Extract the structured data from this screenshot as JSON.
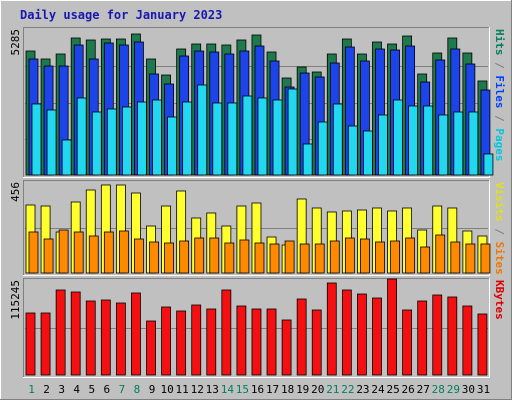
{
  "chart_data": {
    "type": "bar",
    "title": "Daily usage for January 2023",
    "x_tick_labels": [
      "1",
      "2",
      "3",
      "4",
      "5",
      "6",
      "7",
      "8",
      "9",
      "10",
      "11",
      "12",
      "13",
      "14",
      "15",
      "16",
      "17",
      "18",
      "19",
      "20",
      "21",
      "22",
      "23",
      "24",
      "25",
      "26",
      "27",
      "28",
      "29",
      "30",
      "31"
    ],
    "weekend_days": [
      1,
      7,
      8,
      14,
      15,
      21,
      22,
      28,
      29
    ],
    "panels": [
      {
        "id": "hits_files_pages",
        "ymax_label": "5285",
        "ymax": 5285,
        "side_label_parts": [
          {
            "text": "Pages",
            "color": "#00c8e0"
          },
          {
            "text": " / ",
            "color": "#808080"
          },
          {
            "text": "Files",
            "color": "#0040ff"
          },
          {
            "text": " / ",
            "color": "#808080"
          },
          {
            "text": "Hits",
            "color": "#00805c"
          }
        ],
        "series": [
          {
            "name": "Hits",
            "color": "#1e7a4c",
            "values": [
              4510,
              4240,
              4420,
              5000,
              4930,
              4950,
              4970,
              5130,
              4210,
              3660,
              4590,
              4780,
              4780,
              4750,
              4910,
              5100,
              4480,
              3540,
              3930,
              3760,
              4410,
              4970,
              4410,
              4850,
              4780,
              5050,
              3680,
              4430,
              5000,
              4440,
              3430
            ]
          },
          {
            "name": "Files",
            "color": "#1c44e8",
            "values": [
              4220,
              3960,
              3980,
              4750,
              4230,
              4800,
              4750,
              4860,
              3680,
              3330,
              4320,
              4530,
              4480,
              4400,
              4530,
              4700,
              4150,
              3210,
              3720,
              3570,
              4080,
              4660,
              4150,
              4610,
              4550,
              4720,
              3380,
              4180,
              4600,
              4060,
              3080
            ]
          },
          {
            "name": "Pages",
            "color": "#22d8f0",
            "values": [
              2590,
              2370,
              1270,
              2790,
              2280,
              2400,
              2470,
              2670,
              2720,
              2130,
              2660,
              3270,
              2630,
              2610,
              2880,
              2800,
              2740,
              3150,
              1120,
              1930,
              2570,
              1780,
              1620,
              2170,
              2730,
              2520,
              2510,
              2190,
              2280,
              2310,
              775
            ]
          }
        ]
      },
      {
        "id": "visits_sites",
        "ymax_label": "456",
        "ymax": 456,
        "side_label_parts": [
          {
            "text": "Sites",
            "color": "#f07800"
          },
          {
            "text": " / ",
            "color": "#808080"
          },
          {
            "text": "Visits",
            "color": "#e0e020"
          }
        ],
        "series": [
          {
            "name": "Visits",
            "color": "#ffff2e",
            "values": [
              345,
              340,
              210,
              360,
              420,
              448,
              448,
              407,
              240,
              340,
              415,
              277,
              305,
              240,
              337,
              355,
              180,
              140,
              375,
              330,
              308,
              315,
              320,
              330,
              316,
              330,
              220,
              340,
              330,
              215,
              188
            ]
          },
          {
            "name": "Sites",
            "color": "#ff8a00",
            "values": [
              210,
              170,
              220,
              210,
              185,
              210,
              215,
              170,
              155,
              150,
              162,
              175,
              177,
              150,
              165,
              150,
              147,
              160,
              147,
              145,
              160,
              177,
              170,
              155,
              160,
              176,
              132,
              190,
              155,
              147,
              147
            ]
          }
        ]
      },
      {
        "id": "kbytes",
        "ymax_label": "115245",
        "ymax": 115245,
        "side_label_parts": [
          {
            "text": "KBytes",
            "color": "#e00000"
          }
        ],
        "series": [
          {
            "name": "KBytes",
            "color": "#f41010",
            "values": [
              76000,
              76000,
              104300,
              102000,
              90200,
              91600,
              87700,
              100000,
              65800,
              83600,
              79000,
              85600,
              81200,
              104300,
              84500,
              80900,
              81200,
              67200,
              93300,
              80000,
              113000,
              104000,
              99600,
              94800,
              117500,
              80000,
              90200,
              98000,
              95900,
              84500,
              75000
            ]
          }
        ]
      }
    ]
  }
}
